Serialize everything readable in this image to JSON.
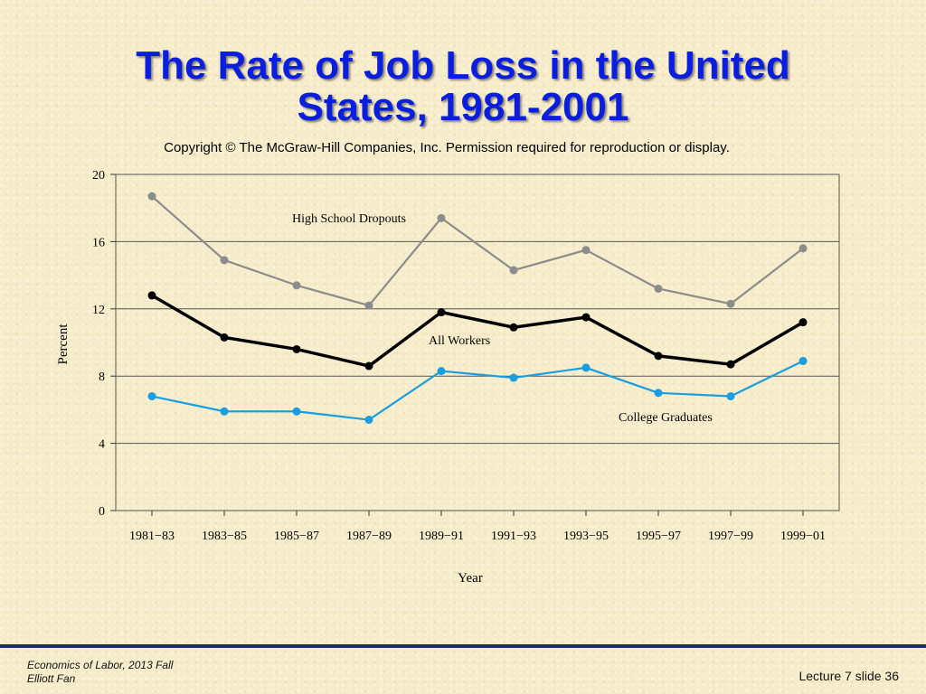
{
  "slide": {
    "title_line1": "The Rate of Job Loss in the United",
    "title_line2": "States, 1981-2001",
    "copyright": "Copyright © The McGraw-Hill Companies, Inc. Permission required for reproduction or display."
  },
  "footer": {
    "course": "Economics of Labor, 2013 Fall",
    "author": "Elliott Fan",
    "slide_number": "Lecture 7 slide 36"
  },
  "chart_data": {
    "type": "line",
    "categories": [
      "1981−83",
      "1983−85",
      "1985−87",
      "1987−89",
      "1989−91",
      "1991−93",
      "1993−95",
      "1995−97",
      "1997−99",
      "1999−01"
    ],
    "xlabel": "Year",
    "ylabel": "Percent",
    "ylim": [
      0,
      20
    ],
    "yticks": [
      0,
      4,
      8,
      12,
      16,
      20
    ],
    "grid": true,
    "series": [
      {
        "name": "High School Dropouts",
        "color": "#8c8c8c",
        "values": [
          18.7,
          14.9,
          13.4,
          12.2,
          17.4,
          14.3,
          15.5,
          13.2,
          12.3,
          15.6
        ]
      },
      {
        "name": "All Workers",
        "color": "#000000",
        "values": [
          12.8,
          10.3,
          9.6,
          8.6,
          11.8,
          10.9,
          11.5,
          9.2,
          8.7,
          11.2
        ]
      },
      {
        "name": "College Graduates",
        "color": "#1a9ee0",
        "values": [
          6.8,
          5.9,
          5.9,
          5.4,
          8.3,
          7.9,
          8.5,
          7.0,
          6.8,
          8.9
        ]
      }
    ]
  }
}
